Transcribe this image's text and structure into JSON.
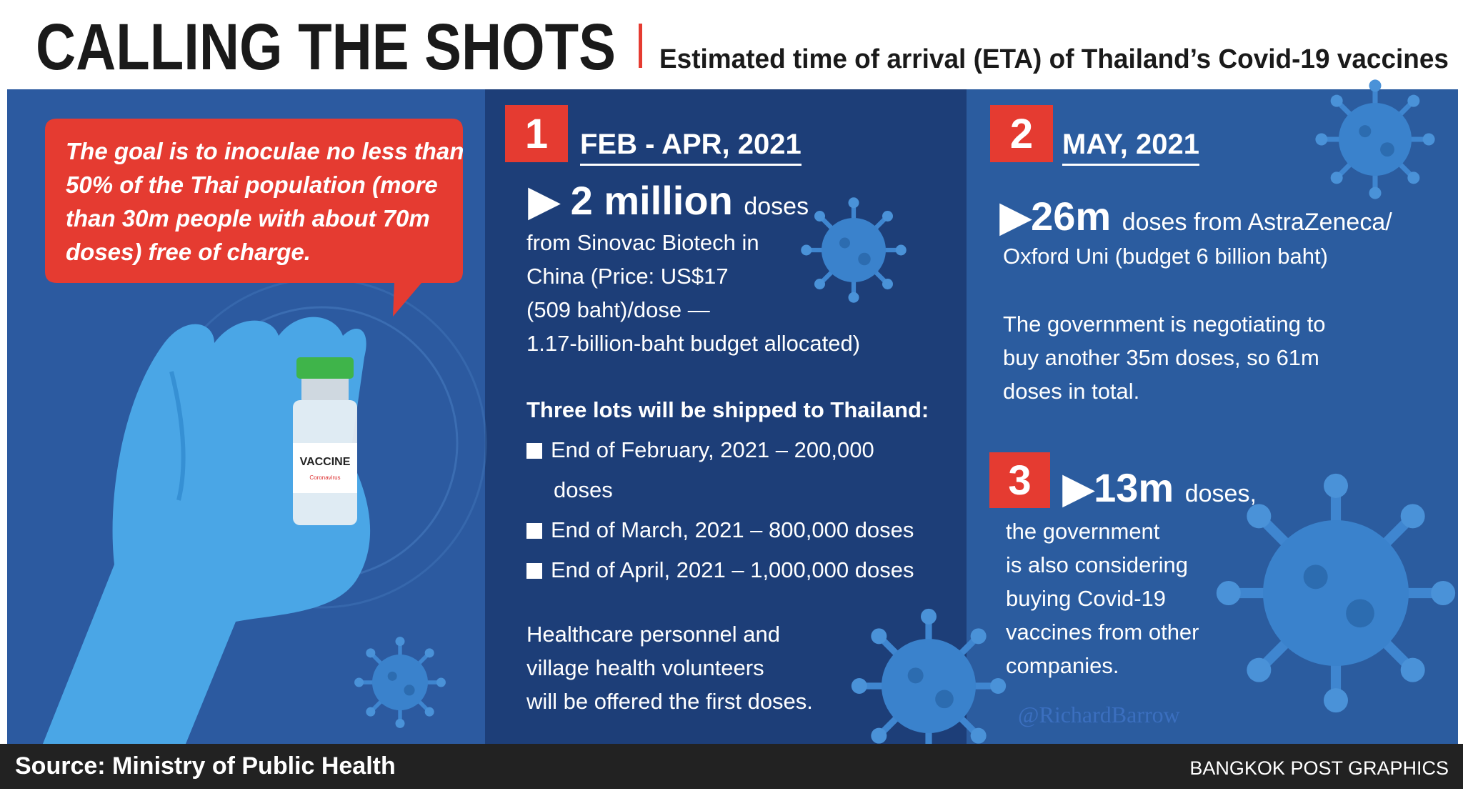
{
  "header": {
    "title": "CALLING THE SHOTS",
    "subtitle": "Estimated time of arrival (ETA) of Thailand’s Covid-19 vaccines"
  },
  "callout": {
    "lines": [
      "The goal is to inoculae no less than",
      "50% of the Thai population (more",
      "than 30m people with about 70m",
      "doses) free of charge."
    ]
  },
  "vial": {
    "label": "VACCINE",
    "sublabel": "Coronavirus"
  },
  "sections": [
    {
      "number": "1",
      "period": "FEB - APR, 2021",
      "highlight": "2 million",
      "unit": "doses",
      "lines": [
        "from Sinovac Biotech in",
        "China (Price: US$17",
        "(509 baht)/dose —",
        "1.17-billion-baht budget allocated)"
      ],
      "lots_heading": "Three lots will be shipped to Thailand:",
      "lots": [
        [
          "End of February, 2021 – 200,000",
          "doses"
        ],
        [
          "End of March, 2021 – 800,000 doses"
        ],
        [
          "End of April, 2021 – 1,000,000 doses"
        ]
      ],
      "note": [
        "Healthcare personnel and",
        "village health volunteers",
        "will be offered the first doses."
      ]
    },
    {
      "number": "2",
      "period": "MAY, 2021",
      "highlight": "26m",
      "unit": "doses from AstraZeneca/",
      "lines": [
        "Oxford Uni (budget 6 billion baht)"
      ],
      "note": [
        "The government is negotiating to",
        "buy another 35m doses, so 61m",
        "doses in total."
      ]
    },
    {
      "number": "3",
      "highlight": "13m",
      "unit": "doses,",
      "lines": [
        "the government",
        "is also considering",
        "buying Covid-19",
        "vaccines from other",
        "companies."
      ]
    }
  ],
  "watermark": "@RichardBarrow",
  "footer": {
    "source": "Source: Ministry of Public Health",
    "credit": "BANGKOK POST GRAPHICS"
  }
}
